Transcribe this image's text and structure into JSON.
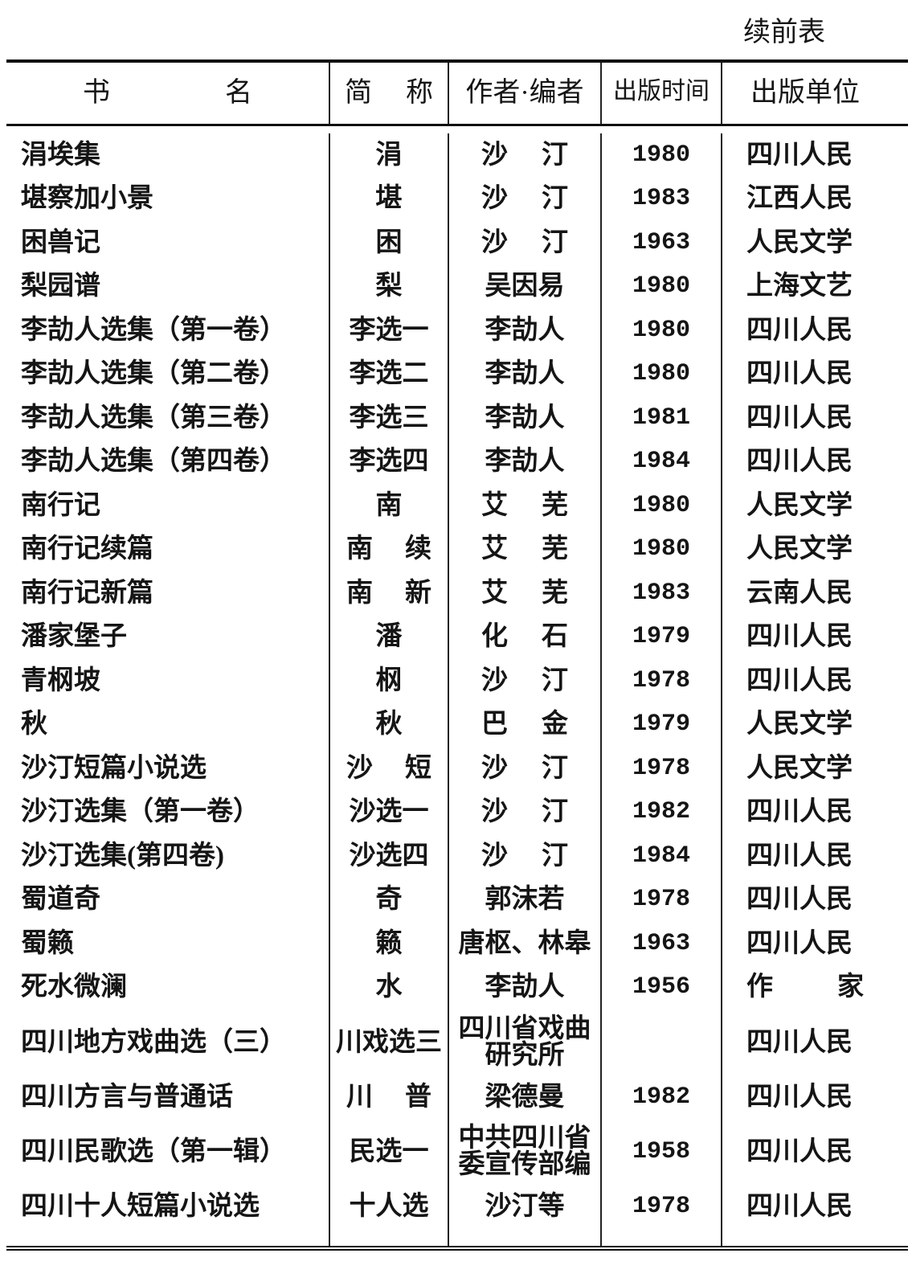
{
  "header": {
    "title": "续前表"
  },
  "table": {
    "columns": [
      "书名",
      "简称",
      "作者·编者",
      "出版时间",
      "出版单位"
    ],
    "rows": [
      [
        "涓埃集",
        "涓",
        "沙汀",
        "1980",
        "四川人民"
      ],
      [
        "堪察加小景",
        "堪",
        "沙汀",
        "1983",
        "江西人民"
      ],
      [
        "困兽记",
        "困",
        "沙汀",
        "1963",
        "人民文学"
      ],
      [
        "梨园谱",
        "梨",
        "吴因易",
        "1980",
        "上海文艺"
      ],
      [
        "李劼人选集（第一卷）",
        "李选一",
        "李劼人",
        "1980",
        "四川人民"
      ],
      [
        "李劼人选集（第二卷）",
        "李选二",
        "李劼人",
        "1980",
        "四川人民"
      ],
      [
        "李劼人选集（第三卷）",
        "李选三",
        "李劼人",
        "1981",
        "四川人民"
      ],
      [
        "李劼人选集（第四卷）",
        "李选四",
        "李劼人",
        "1984",
        "四川人民"
      ],
      [
        "南行记",
        "南",
        "艾芜",
        "1980",
        "人民文学"
      ],
      [
        "南行记续篇",
        "南续",
        "艾芜",
        "1980",
        "人民文学"
      ],
      [
        "南行记新篇",
        "南新",
        "艾芜",
        "1983",
        "云南人民"
      ],
      [
        "潘家堡子",
        "潘",
        "化石",
        "1979",
        "四川人民"
      ],
      [
        "青㭎坡",
        "㭎",
        "沙汀",
        "1978",
        "四川人民"
      ],
      [
        "秋",
        "秋",
        "巴金",
        "1979",
        "人民文学"
      ],
      [
        "沙汀短篇小说选",
        "沙短",
        "沙汀",
        "1978",
        "人民文学"
      ],
      [
        "沙汀选集（第一卷）",
        "沙选一",
        "沙汀",
        "1982",
        "四川人民"
      ],
      [
        "沙汀选集(第四卷)",
        "沙选四",
        "沙汀",
        "1984",
        "四川人民"
      ],
      [
        "蜀道奇",
        "奇",
        "郭沫若",
        "1978",
        "四川人民"
      ],
      [
        "蜀籁",
        "籁",
        "唐枢、林皋",
        "1963",
        "四川人民"
      ],
      [
        "死水微澜",
        "水",
        "李劼人",
        "1956",
        "作家"
      ],
      [
        "四川地方戏曲选（三）",
        "川戏选三",
        "四川省戏曲研究所",
        null,
        "四川人民"
      ],
      [
        "四川方言与普通话",
        "川普",
        "梁德曼",
        "1982",
        "四川人民"
      ],
      [
        "四川民歌选（第一辑）",
        "民选一",
        "中共四川省委宣传部编",
        "1958",
        "四川人民"
      ],
      [
        "四川十人短篇小说选",
        "十人选",
        "沙汀等",
        "1978",
        "四川人民"
      ]
    ]
  }
}
